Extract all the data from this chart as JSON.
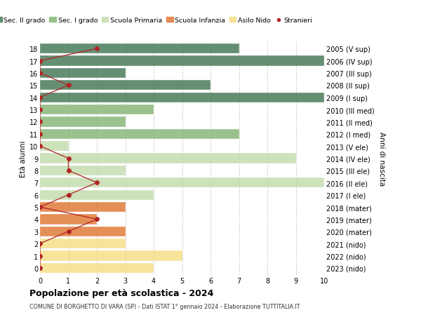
{
  "ages": [
    18,
    17,
    16,
    15,
    14,
    13,
    12,
    11,
    10,
    9,
    8,
    7,
    6,
    5,
    4,
    3,
    2,
    1,
    0
  ],
  "year_labels": [
    "2005 (V sup)",
    "2006 (IV sup)",
    "2007 (III sup)",
    "2008 (II sup)",
    "2009 (I sup)",
    "2010 (III med)",
    "2011 (II med)",
    "2012 (I med)",
    "2013 (V ele)",
    "2014 (IV ele)",
    "2015 (III ele)",
    "2016 (II ele)",
    "2017 (I ele)",
    "2018 (mater)",
    "2019 (mater)",
    "2020 (mater)",
    "2021 (nido)",
    "2022 (nido)",
    "2023 (nido)"
  ],
  "bar_values": [
    7,
    10,
    3,
    6,
    10,
    4,
    3,
    7,
    1,
    9,
    3,
    10,
    4,
    3,
    2,
    3,
    3,
    5,
    4
  ],
  "bar_colors": [
    "#4a7c59",
    "#4a7c59",
    "#4a7c59",
    "#4a7c59",
    "#4a7c59",
    "#8ab87a",
    "#8ab87a",
    "#8ab87a",
    "#c5ddb0",
    "#c5ddb0",
    "#c5ddb0",
    "#c5ddb0",
    "#c5ddb0",
    "#e07b39",
    "#e07b39",
    "#e07b39",
    "#f5e08a",
    "#f5e08a",
    "#f5e08a"
  ],
  "stranieri_x": [
    2,
    0,
    0,
    1,
    0,
    0,
    0,
    0,
    0,
    1,
    1,
    2,
    1,
    0,
    2,
    1,
    0,
    0,
    0
  ],
  "legend_labels": [
    "Sec. II grado",
    "Sec. I grado",
    "Scuola Primaria",
    "Scuola Infanzia",
    "Asilo Nido",
    "Stranieri"
  ],
  "legend_colors": [
    "#4a7c59",
    "#8ab87a",
    "#c5ddb0",
    "#e07b39",
    "#f5e08a",
    "#b22222"
  ],
  "title": "Popolazione per età scolastica - 2024",
  "subtitle": "COMUNE DI BORGHETTO DI VARA (SP) - Dati ISTAT 1° gennaio 2024 - Elaborazione TUTTITALIA.IT",
  "ylabel_left": "Età alunni",
  "ylabel_right": "Anni di nascita",
  "xlim": [
    0,
    10
  ],
  "bg_color": "#ffffff",
  "bar_alpha": 0.85,
  "grid_color": "#cccccc"
}
